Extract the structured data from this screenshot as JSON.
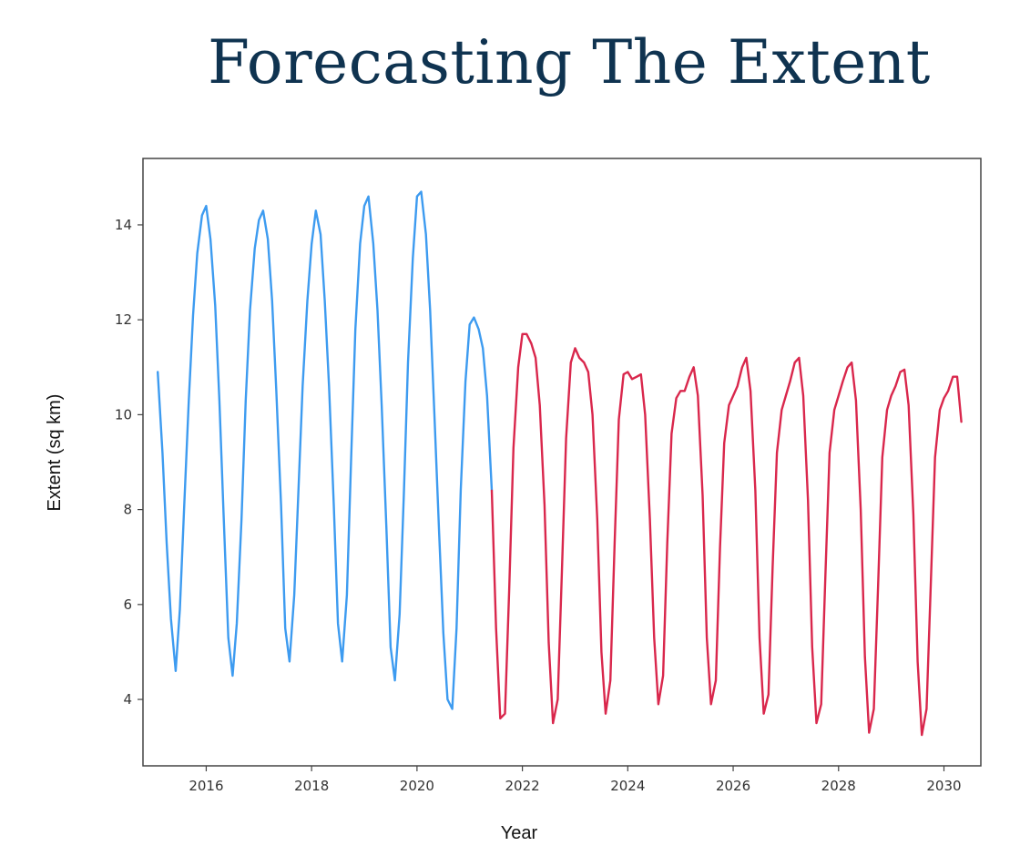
{
  "page": {
    "title": "Forecasting The Extent"
  },
  "chart_data": {
    "type": "line",
    "title": "",
    "xlabel": "Year",
    "ylabel": "Extent (sq km)",
    "xlim": [
      2014.8,
      2030.7
    ],
    "ylim": [
      2.6,
      15.4
    ],
    "x_ticks": [
      2016,
      2018,
      2020,
      2022,
      2024,
      2026,
      2028,
      2030
    ],
    "y_ticks": [
      4,
      6,
      8,
      10,
      12,
      14
    ],
    "grid": false,
    "legend": "none",
    "series": [
      {
        "color": "#3d9bf0",
        "points": [
          [
            2015.08,
            10.9
          ],
          [
            2015.17,
            9.2
          ],
          [
            2015.25,
            7.3
          ],
          [
            2015.33,
            5.7
          ],
          [
            2015.42,
            4.6
          ],
          [
            2015.5,
            5.9
          ],
          [
            2015.58,
            8.0
          ],
          [
            2015.67,
            10.3
          ],
          [
            2015.75,
            12.1
          ],
          [
            2015.83,
            13.4
          ],
          [
            2015.92,
            14.2
          ],
          [
            2016.0,
            14.4
          ],
          [
            2016.08,
            13.7
          ],
          [
            2016.17,
            12.3
          ],
          [
            2016.25,
            10.3
          ],
          [
            2016.33,
            7.9
          ],
          [
            2016.42,
            5.3
          ],
          [
            2016.5,
            4.5
          ],
          [
            2016.58,
            5.6
          ],
          [
            2016.67,
            7.8
          ],
          [
            2016.75,
            10.3
          ],
          [
            2016.83,
            12.2
          ],
          [
            2016.92,
            13.5
          ],
          [
            2017.0,
            14.1
          ],
          [
            2017.08,
            14.3
          ],
          [
            2017.17,
            13.7
          ],
          [
            2017.25,
            12.4
          ],
          [
            2017.33,
            10.5
          ],
          [
            2017.42,
            8.1
          ],
          [
            2017.5,
            5.5
          ],
          [
            2017.58,
            4.8
          ],
          [
            2017.67,
            6.2
          ],
          [
            2017.75,
            8.4
          ],
          [
            2017.83,
            10.6
          ],
          [
            2017.92,
            12.4
          ],
          [
            2018.0,
            13.6
          ],
          [
            2018.08,
            14.3
          ],
          [
            2018.17,
            13.8
          ],
          [
            2018.25,
            12.4
          ],
          [
            2018.33,
            10.6
          ],
          [
            2018.42,
            8.1
          ],
          [
            2018.5,
            5.6
          ],
          [
            2018.58,
            4.8
          ],
          [
            2018.67,
            6.2
          ],
          [
            2018.75,
            9.1
          ],
          [
            2018.83,
            11.8
          ],
          [
            2018.92,
            13.6
          ],
          [
            2019.0,
            14.4
          ],
          [
            2019.08,
            14.6
          ],
          [
            2019.17,
            13.6
          ],
          [
            2019.25,
            12.2
          ],
          [
            2019.33,
            10.2
          ],
          [
            2019.42,
            7.6
          ],
          [
            2019.5,
            5.1
          ],
          [
            2019.58,
            4.4
          ],
          [
            2019.67,
            5.8
          ],
          [
            2019.75,
            8.3
          ],
          [
            2019.83,
            11.1
          ],
          [
            2019.92,
            13.3
          ],
          [
            2020.0,
            14.6
          ],
          [
            2020.08,
            14.7
          ],
          [
            2020.17,
            13.8
          ],
          [
            2020.25,
            12.2
          ],
          [
            2020.33,
            10.0
          ],
          [
            2020.42,
            7.5
          ],
          [
            2020.5,
            5.4
          ],
          [
            2020.58,
            4.0
          ],
          [
            2020.67,
            3.8
          ],
          [
            2020.75,
            5.5
          ],
          [
            2020.83,
            8.4
          ],
          [
            2020.92,
            10.7
          ],
          [
            2021.0,
            11.9
          ],
          [
            2021.08,
            12.05
          ],
          [
            2021.17,
            11.8
          ],
          [
            2021.25,
            11.4
          ],
          [
            2021.33,
            10.4
          ],
          [
            2021.42,
            8.4
          ]
        ]
      },
      {
        "color": "#d9274c",
        "points": [
          [
            2021.42,
            8.4
          ],
          [
            2021.5,
            5.5
          ],
          [
            2021.58,
            3.6
          ],
          [
            2021.67,
            3.7
          ],
          [
            2021.75,
            6.3
          ],
          [
            2021.83,
            9.3
          ],
          [
            2021.92,
            11.0
          ],
          [
            2022.0,
            11.7
          ],
          [
            2022.08,
            11.7
          ],
          [
            2022.17,
            11.5
          ],
          [
            2022.25,
            11.2
          ],
          [
            2022.33,
            10.2
          ],
          [
            2022.42,
            8.1
          ],
          [
            2022.5,
            5.2
          ],
          [
            2022.58,
            3.5
          ],
          [
            2022.67,
            4.0
          ],
          [
            2022.75,
            6.7
          ],
          [
            2022.83,
            9.5
          ],
          [
            2022.92,
            11.1
          ],
          [
            2023.0,
            11.4
          ],
          [
            2023.08,
            11.2
          ],
          [
            2023.17,
            11.1
          ],
          [
            2023.25,
            10.9
          ],
          [
            2023.33,
            10.0
          ],
          [
            2023.42,
            7.8
          ],
          [
            2023.5,
            5.0
          ],
          [
            2023.58,
            3.7
          ],
          [
            2023.67,
            4.4
          ],
          [
            2023.75,
            7.3
          ],
          [
            2023.83,
            9.9
          ],
          [
            2023.92,
            10.85
          ],
          [
            2024.0,
            10.9
          ],
          [
            2024.08,
            10.75
          ],
          [
            2024.17,
            10.8
          ],
          [
            2024.25,
            10.85
          ],
          [
            2024.33,
            10.0
          ],
          [
            2024.42,
            7.8
          ],
          [
            2024.5,
            5.3
          ],
          [
            2024.58,
            3.9
          ],
          [
            2024.67,
            4.5
          ],
          [
            2024.75,
            7.3
          ],
          [
            2024.83,
            9.6
          ],
          [
            2024.92,
            10.35
          ],
          [
            2025.0,
            10.5
          ],
          [
            2025.08,
            10.5
          ],
          [
            2025.17,
            10.8
          ],
          [
            2025.25,
            11.0
          ],
          [
            2025.33,
            10.4
          ],
          [
            2025.42,
            8.3
          ],
          [
            2025.5,
            5.3
          ],
          [
            2025.58,
            3.9
          ],
          [
            2025.67,
            4.4
          ],
          [
            2025.75,
            7.2
          ],
          [
            2025.83,
            9.4
          ],
          [
            2025.92,
            10.2
          ],
          [
            2026.0,
            10.4
          ],
          [
            2026.08,
            10.6
          ],
          [
            2026.17,
            11.0
          ],
          [
            2026.25,
            11.2
          ],
          [
            2026.33,
            10.5
          ],
          [
            2026.42,
            8.4
          ],
          [
            2026.5,
            5.3
          ],
          [
            2026.58,
            3.7
          ],
          [
            2026.67,
            4.1
          ],
          [
            2026.75,
            6.8
          ],
          [
            2026.83,
            9.2
          ],
          [
            2026.92,
            10.1
          ],
          [
            2027.0,
            10.4
          ],
          [
            2027.08,
            10.7
          ],
          [
            2027.17,
            11.1
          ],
          [
            2027.25,
            11.2
          ],
          [
            2027.33,
            10.4
          ],
          [
            2027.42,
            8.2
          ],
          [
            2027.5,
            5.1
          ],
          [
            2027.58,
            3.5
          ],
          [
            2027.67,
            3.9
          ],
          [
            2027.75,
            6.6
          ],
          [
            2027.83,
            9.2
          ],
          [
            2027.92,
            10.1
          ],
          [
            2028.0,
            10.4
          ],
          [
            2028.08,
            10.7
          ],
          [
            2028.17,
            11.0
          ],
          [
            2028.25,
            11.1
          ],
          [
            2028.33,
            10.3
          ],
          [
            2028.42,
            8.0
          ],
          [
            2028.5,
            4.9
          ],
          [
            2028.58,
            3.3
          ],
          [
            2028.67,
            3.8
          ],
          [
            2028.75,
            6.4
          ],
          [
            2028.83,
            9.1
          ],
          [
            2028.92,
            10.1
          ],
          [
            2029.0,
            10.4
          ],
          [
            2029.08,
            10.6
          ],
          [
            2029.17,
            10.9
          ],
          [
            2029.25,
            10.95
          ],
          [
            2029.33,
            10.2
          ],
          [
            2029.42,
            7.9
          ],
          [
            2029.5,
            4.8
          ],
          [
            2029.58,
            3.25
          ],
          [
            2029.67,
            3.8
          ],
          [
            2029.75,
            6.4
          ],
          [
            2029.83,
            9.1
          ],
          [
            2029.92,
            10.1
          ],
          [
            2030.0,
            10.35
          ],
          [
            2030.08,
            10.5
          ],
          [
            2030.17,
            10.8
          ],
          [
            2030.25,
            10.8
          ],
          [
            2030.33,
            9.85
          ]
        ]
      }
    ]
  }
}
